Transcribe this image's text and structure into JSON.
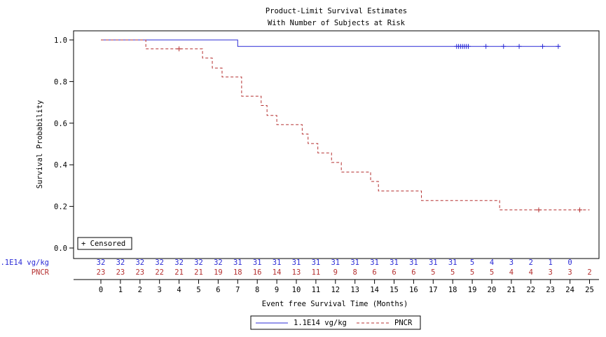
{
  "chart_data": {
    "type": "line",
    "title": "Product-Limit Survival Estimates",
    "subtitle": "With Number of Subjects at Risk",
    "xlabel": "Event free Survival Time (Months)",
    "ylabel": "Survival Probability",
    "xlim": [
      0,
      25
    ],
    "ylim": [
      0,
      1
    ],
    "x_ticks": [
      0,
      1,
      2,
      3,
      4,
      5,
      6,
      7,
      8,
      9,
      10,
      11,
      12,
      13,
      14,
      15,
      16,
      17,
      18,
      19,
      20,
      21,
      22,
      23,
      24,
      25
    ],
    "y_ticks": [
      0.0,
      0.2,
      0.4,
      0.6,
      0.8,
      1.0
    ],
    "y_tick_labels": [
      "0.0",
      "0.2",
      "0.4",
      "0.6",
      "0.8",
      "1.0"
    ],
    "censored_label": "+ Censored",
    "legend_placement": "bottom",
    "series": [
      {
        "name": "1.1E14 vg/kg",
        "color": "#2b2bd6",
        "style": "solid",
        "steps": [
          [
            0,
            1.0
          ],
          [
            7.0,
            0.969
          ],
          [
            23.5,
            0.969
          ]
        ],
        "censored": [
          [
            18.2,
            0.969
          ],
          [
            18.3,
            0.969
          ],
          [
            18.4,
            0.969
          ],
          [
            18.5,
            0.969
          ],
          [
            18.6,
            0.969
          ],
          [
            18.7,
            0.969
          ],
          [
            18.8,
            0.969
          ],
          [
            19.7,
            0.969
          ],
          [
            20.6,
            0.969
          ],
          [
            21.4,
            0.969
          ],
          [
            22.6,
            0.969
          ],
          [
            23.4,
            0.969
          ]
        ],
        "at_risk": [
          "32",
          "32",
          "32",
          "32",
          "32",
          "32",
          "32",
          "31",
          "31",
          "31",
          "31",
          "31",
          "31",
          "31",
          "31",
          "31",
          "31",
          "31",
          "31",
          "5",
          "4",
          "3",
          "2",
          "1",
          "0"
        ]
      },
      {
        "name": "PNCR",
        "color": "#b53030",
        "style": "dashed",
        "steps": [
          [
            0,
            1.0
          ],
          [
            2.3,
            0.957
          ],
          [
            5.2,
            0.913
          ],
          [
            5.7,
            0.865
          ],
          [
            6.2,
            0.822
          ],
          [
            7.2,
            0.73
          ],
          [
            8.2,
            0.685
          ],
          [
            8.5,
            0.637
          ],
          [
            9.0,
            0.593
          ],
          [
            10.3,
            0.548
          ],
          [
            10.6,
            0.502
          ],
          [
            11.1,
            0.457
          ],
          [
            11.8,
            0.411
          ],
          [
            12.3,
            0.365
          ],
          [
            13.8,
            0.32
          ],
          [
            14.2,
            0.274
          ],
          [
            16.4,
            0.228
          ],
          [
            20.4,
            0.183
          ],
          [
            25.0,
            0.183
          ]
        ],
        "censored": [
          [
            4.0,
            0.957
          ],
          [
            22.4,
            0.183
          ],
          [
            24.5,
            0.183
          ]
        ],
        "at_risk": [
          "23",
          "23",
          "23",
          "22",
          "21",
          "21",
          "19",
          "18",
          "16",
          "14",
          "13",
          "11",
          "9",
          "8",
          "6",
          "6",
          "6",
          "5",
          "5",
          "5",
          "5",
          "4",
          "4",
          "3",
          "3",
          "2"
        ]
      }
    ]
  }
}
